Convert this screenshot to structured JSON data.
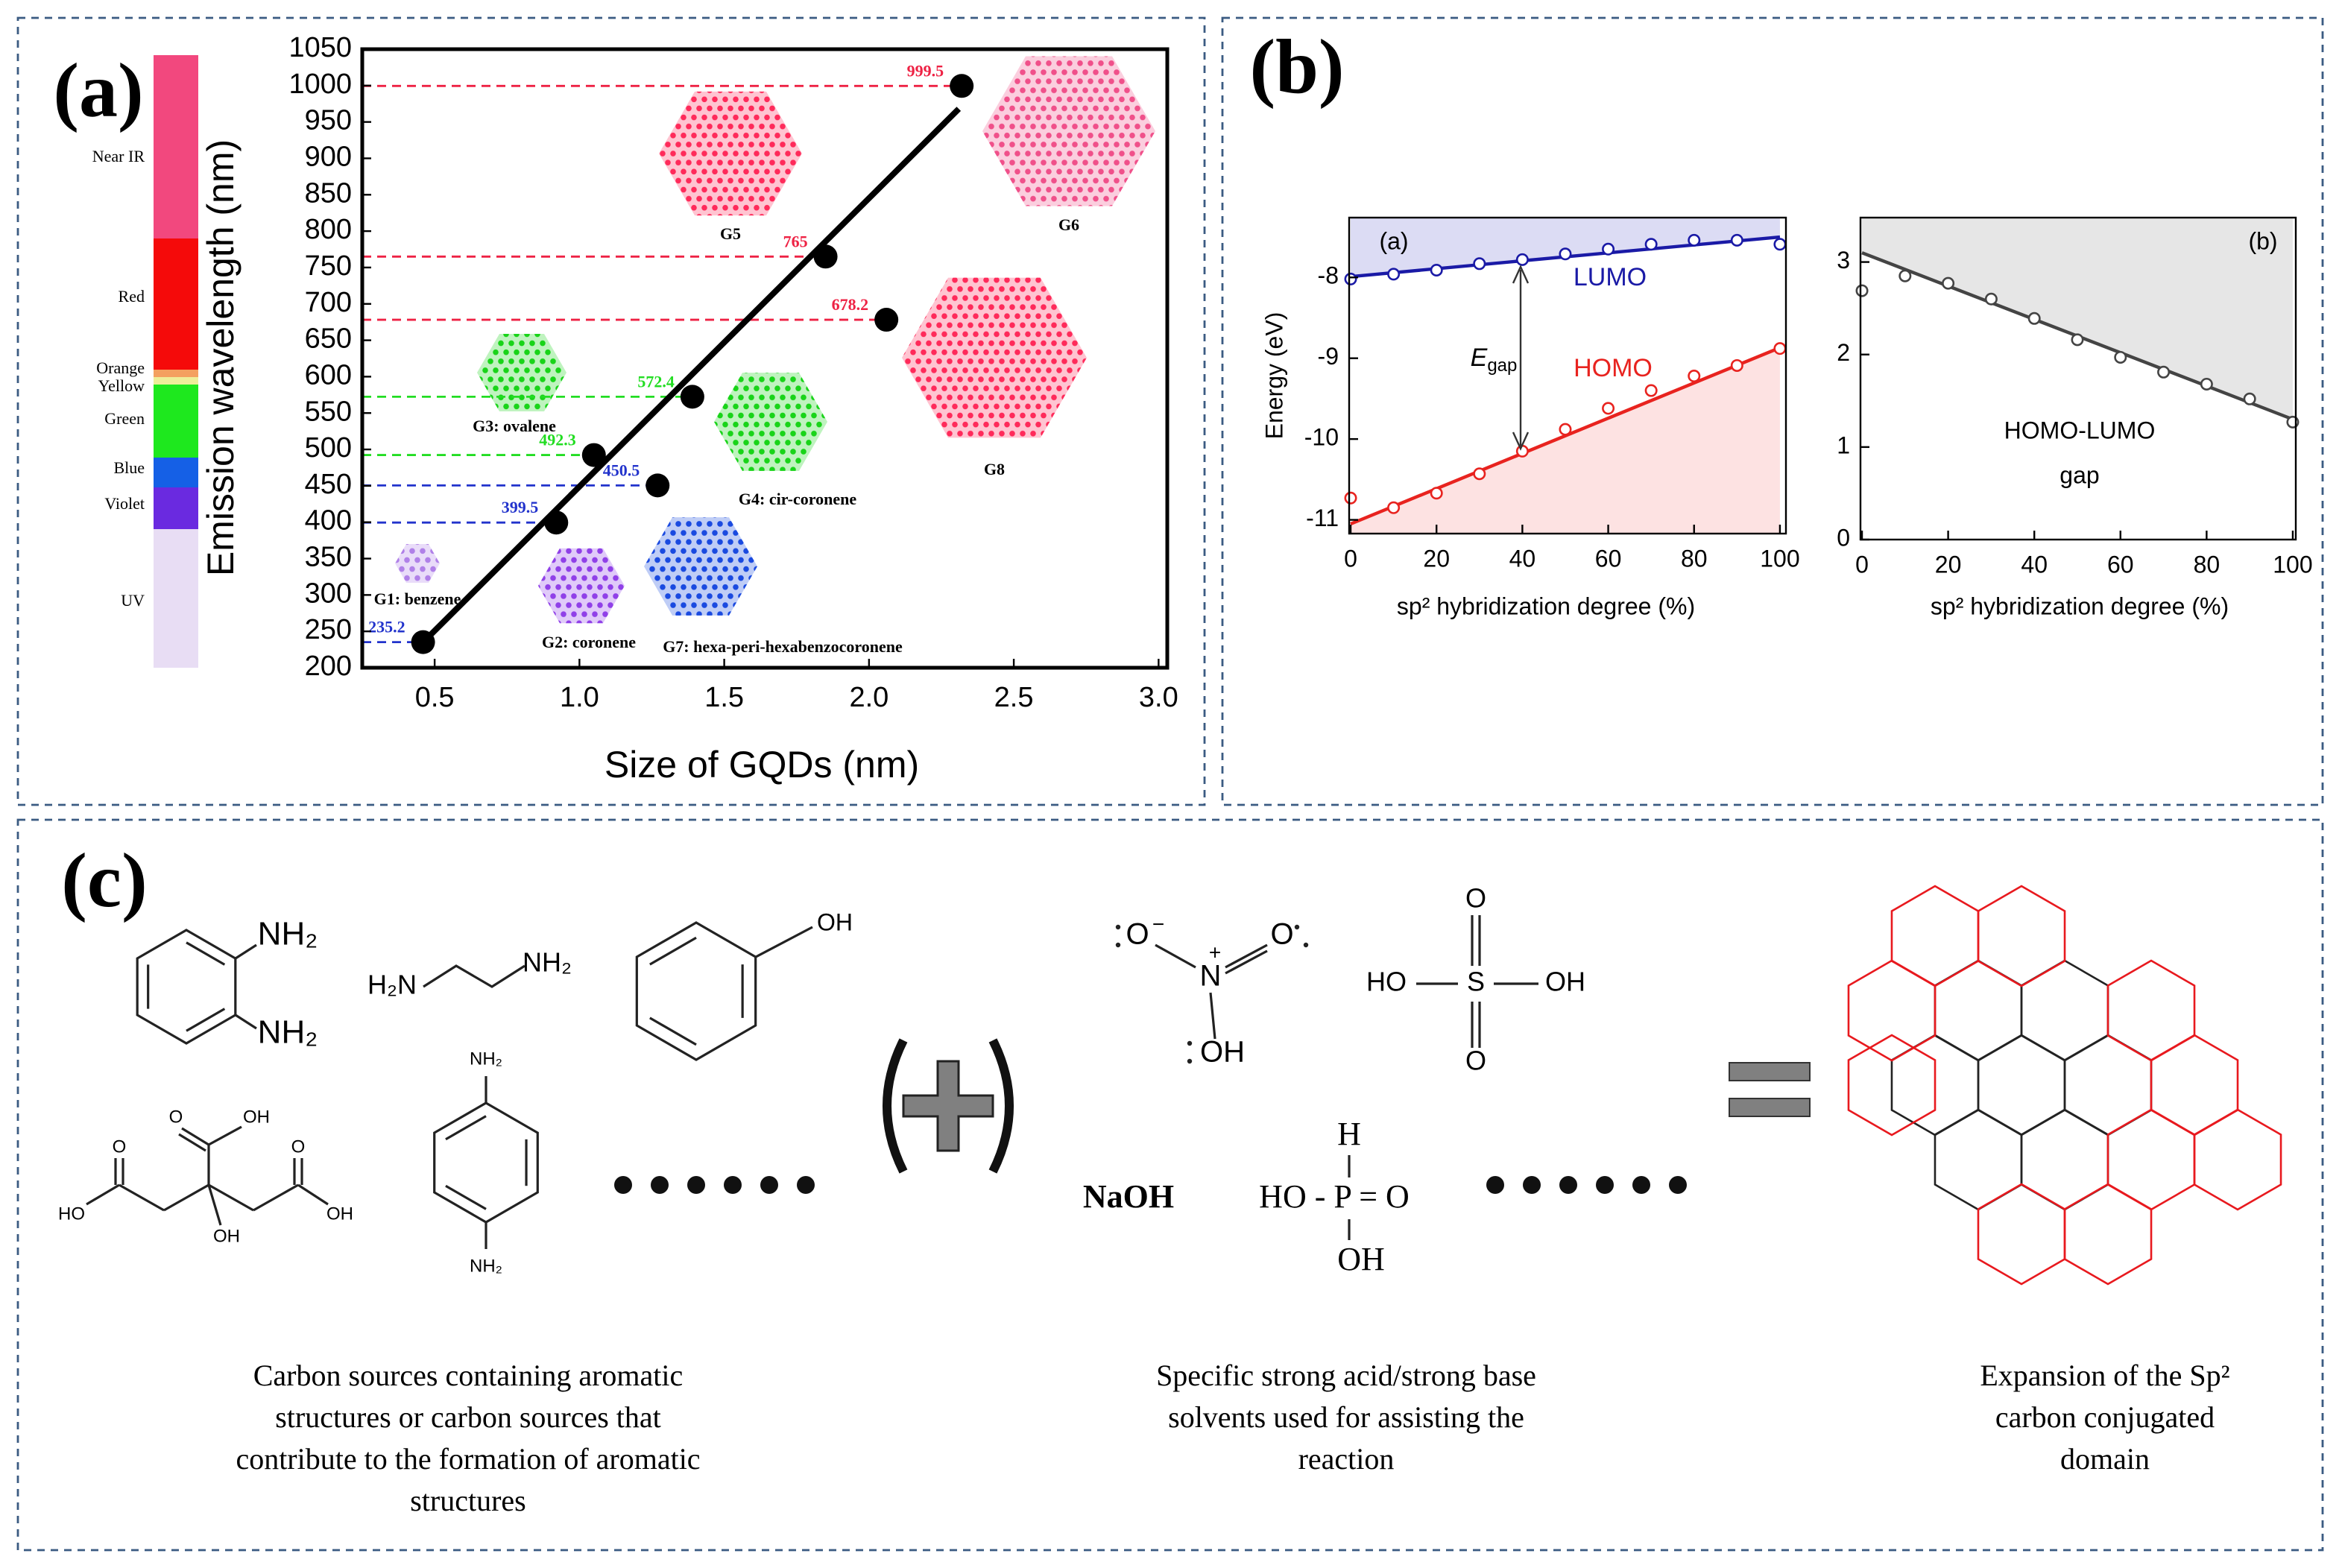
{
  "panel_labels": [
    "(a)",
    "(b)",
    "(c)"
  ],
  "chart_data": [
    {
      "type": "scatter",
      "x_label": "Size of GQDs (nm)",
      "y_label": "Emission wavelength (nm)",
      "x": [
        0.46,
        0.92,
        1.05,
        1.27,
        1.39,
        1.85,
        2.06,
        2.32
      ],
      "values": [
        235.2,
        399.5,
        492.3,
        450.5,
        572.4,
        765,
        678.2,
        999.5
      ],
      "label_colors": [
        "#2233cc",
        "#2233cc",
        "#22dd22",
        "#2233cc",
        "#22dd22",
        "#ee2244",
        "#ee2244",
        "#ee2244"
      ],
      "color": "#000000",
      "fit": {
        "x": [
          0.46,
          2.31
        ],
        "values": [
          235,
          968
        ]
      },
      "xlim": [
        0.25,
        3.03
      ],
      "ylim": [
        200,
        1050
      ],
      "xticks": [
        0.5,
        {
          "value": 1,
          "label": "1.0"
        },
        1.5,
        {
          "value": 2,
          "label": "2.0"
        },
        2.5,
        {
          "value": 3,
          "label": "3.0"
        }
      ],
      "yticks": [
        200,
        250,
        300,
        350,
        400,
        450,
        500,
        550,
        600,
        650,
        700,
        750,
        800,
        850,
        900,
        950,
        1000,
        1050
      ],
      "spectrum": [
        {
          "name": "Near IR",
          "color": "#f2487e"
        },
        {
          "name": "Red",
          "color": "#f50a0a"
        },
        {
          "name": "Orange",
          "color": "#f4a060"
        },
        {
          "name": "Yellow",
          "color": "#eeee99"
        },
        {
          "name": "Green",
          "color": "#1ee81e"
        },
        {
          "name": "Blue",
          "color": "#1560e6"
        },
        {
          "name": "Violet",
          "color": "#6a2ae0"
        },
        {
          "name": "UV",
          "color": "#e8ddf4"
        }
      ],
      "molecules": [
        {
          "label": "G5",
          "color": "#ff2a5a"
        },
        {
          "label": "G6",
          "color": "#f0508a"
        },
        {
          "label": "G3: ovalene",
          "color": "#19d419"
        },
        {
          "label": "G4: cir-coronene",
          "color": "#19d419"
        },
        {
          "label": "G8",
          "color": "#ff2a5a"
        },
        {
          "label": "G1: benzene",
          "color": "#b080e8"
        },
        {
          "label": "G2: coronene",
          "color": "#9040e8"
        },
        {
          "label": "G7: hexa-peri-hexabenzocoronene",
          "color": "#1a4ae0"
        }
      ]
    },
    {
      "type": "line",
      "x_label": "sp² hybridization degree (%)",
      "y_label": "Energy (eV)",
      "annotations": [
        "(a)"
      ],
      "gap_label": {
        "main": "E",
        "sub": "gap"
      },
      "x": [
        0,
        10,
        20,
        30,
        40,
        50,
        60,
        70,
        80,
        90,
        100
      ],
      "series": [
        {
          "name": "LUMO",
          "color": "#1a1aa6",
          "values": [
            -8.02,
            -7.96,
            -7.91,
            -7.83,
            -7.78,
            -7.71,
            -7.65,
            -7.59,
            -7.54,
            -7.54,
            -7.59
          ],
          "fit": {
            "x": [
              0,
              100
            ],
            "values": [
              -7.99,
              -7.5
            ]
          },
          "shade": "above",
          "shade_color": "#dcdcf4"
        },
        {
          "name": "HOMO",
          "color": "#e8231f",
          "values": [
            -10.73,
            -10.85,
            -10.67,
            -10.43,
            -10.15,
            -9.88,
            -9.62,
            -9.4,
            -9.22,
            -9.09,
            -8.88
          ],
          "fit": {
            "x": [
              0,
              100
            ],
            "values": [
              -11.05,
              -8.87
            ]
          },
          "shade": "below",
          "shade_color": "#fde2e2"
        }
      ],
      "xlim": [
        -0.35,
        101.4
      ],
      "ylim": [
        -11.17,
        -7.26
      ],
      "xticks": [
        0,
        20,
        40,
        60,
        80,
        100
      ],
      "yticks": [
        -8,
        -9,
        -10,
        -11
      ]
    },
    {
      "type": "line",
      "x_label": "sp² hybridization degree (%)",
      "annotations": [
        "(b)",
        "HOMO-LUMO",
        "gap"
      ],
      "x": [
        0,
        10,
        20,
        30,
        40,
        50,
        60,
        70,
        80,
        90,
        100
      ],
      "series": [
        {
          "color": "#444444",
          "values": [
            2.69,
            2.85,
            2.77,
            2.6,
            2.39,
            2.16,
            1.97,
            1.81,
            1.68,
            1.52,
            1.27
          ],
          "fit": {
            "x": [
              0,
              100
            ],
            "values": [
              3.1,
              1.3
            ]
          },
          "shade": "above",
          "shade_color": "#e6e6e6"
        }
      ],
      "xlim": [
        -0.35,
        100.7
      ],
      "ylim": [
        0,
        3.48
      ],
      "xticks": [
        0,
        20,
        40,
        60,
        80,
        100
      ],
      "yticks": [
        0,
        1,
        2,
        3
      ]
    }
  ],
  "panel_c": {
    "atom_labels": [
      "NH₂",
      "NH₂",
      "H₂N",
      "NH₂",
      "OH",
      "O",
      "OH",
      "O",
      "O",
      "HO",
      "OH",
      "OH",
      "NH₂",
      "NH₂",
      "O",
      "−",
      "N",
      "+",
      "O",
      "OH",
      "O",
      "HO",
      "S",
      "OH",
      "O",
      "H",
      "HO - P = O",
      "OH",
      "NaOH"
    ],
    "captions": [
      [
        "Carbon sources containing aromatic",
        "structures or carbon sources that",
        "contribute to the formation of aromatic",
        "structures"
      ],
      [
        "Specific strong acid/strong base",
        "solvents used for assisting the",
        "reaction"
      ],
      [
        "Expansion of the Sp²",
        "carbon conjugated",
        "domain"
      ]
    ]
  }
}
